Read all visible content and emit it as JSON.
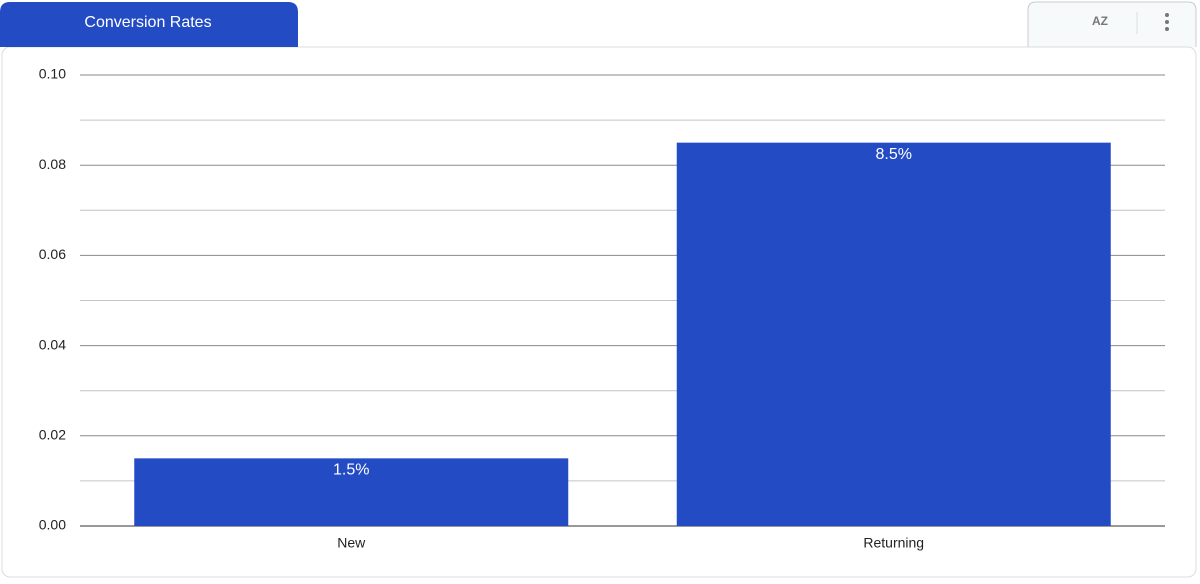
{
  "chart_data": {
    "type": "bar",
    "title": "Conversion Rates",
    "categories": [
      "New",
      "Returning"
    ],
    "values": [
      0.015,
      0.085
    ],
    "value_labels": [
      "1.5%",
      "8.5%"
    ],
    "color": "#234bc4",
    "ylim": [
      0,
      0.1
    ],
    "yticks": [
      {
        "value": 0,
        "label": "0.00"
      },
      0.02,
      0.04,
      0.06,
      0.08,
      {
        "value": 0.1,
        "label": "0.10"
      }
    ],
    "minor_yticks": [
      0.01,
      0.03,
      0.05,
      0.07,
      0.09
    ],
    "grid": true
  },
  "toolbar": {
    "sort_icon": "AZ"
  }
}
